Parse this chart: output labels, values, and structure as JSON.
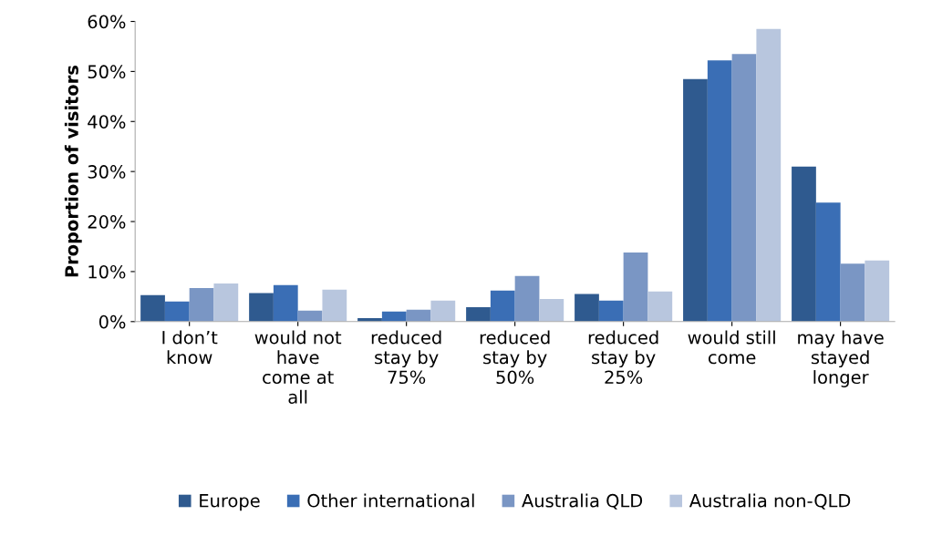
{
  "chart_data": {
    "type": "bar",
    "ylabel": "Proportion of visitors",
    "categories": [
      "I don’t\nknow",
      "would not\nhave\ncome at\nall",
      "reduced\nstay by\n75%",
      "reduced\nstay by\n50%",
      "reduced\nstay by\n25%",
      "would still\ncome",
      "may have\nstayed\nlonger"
    ],
    "series": [
      {
        "name": "Europe",
        "color": "#2f5a8f",
        "values": [
          5.3,
          5.7,
          0.7,
          2.9,
          5.5,
          48.5,
          31.0
        ]
      },
      {
        "name": "Other international",
        "color": "#3a6eb5",
        "values": [
          4.0,
          7.3,
          2.0,
          6.2,
          4.2,
          52.2,
          23.8
        ]
      },
      {
        "name": "Australia QLD",
        "color": "#7a96c4",
        "values": [
          6.7,
          2.2,
          2.4,
          9.1,
          13.8,
          53.5,
          11.6
        ]
      },
      {
        "name": "Australia non-QLD",
        "color": "#b8c6de",
        "values": [
          7.6,
          6.4,
          4.2,
          4.5,
          6.0,
          58.5,
          12.2
        ]
      }
    ],
    "ylim": [
      0,
      60
    ],
    "yticks": [
      {
        "value": 0,
        "label": "0%"
      },
      {
        "value": 10,
        "label": "10%"
      },
      {
        "value": 20,
        "label": "20%"
      },
      {
        "value": 30,
        "label": "30%"
      },
      {
        "value": 40,
        "label": "40%"
      },
      {
        "value": 50,
        "label": "50%"
      },
      {
        "value": 60,
        "label": "60%"
      }
    ],
    "grid": false,
    "legend": "bottom"
  }
}
